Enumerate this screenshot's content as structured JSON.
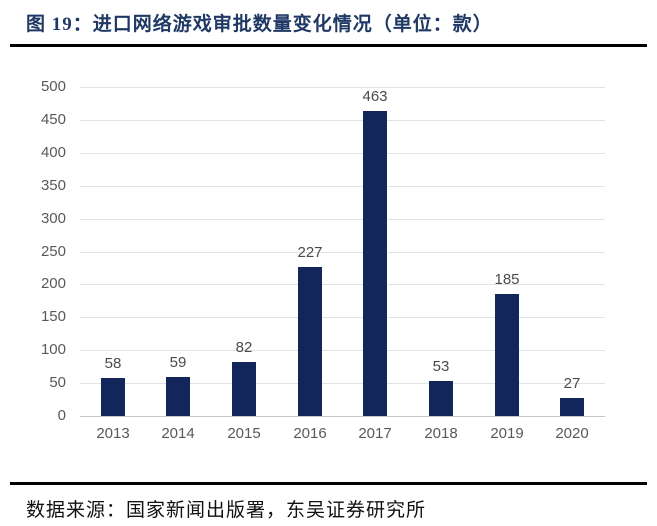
{
  "header": {
    "title": "图 19：进口网络游戏审批数量变化情况（单位：款）"
  },
  "chart_data": {
    "type": "bar",
    "title": "进口网络游戏审批数量变化情况",
    "unit": "款",
    "categories": [
      "2013",
      "2014",
      "2015",
      "2016",
      "2017",
      "2018",
      "2019",
      "2020"
    ],
    "values": [
      58,
      59,
      82,
      227,
      463,
      53,
      185,
      27
    ],
    "xlabel": "",
    "ylabel": "",
    "ylim": [
      0,
      500
    ],
    "ytick_step": 50,
    "grid": "horizontal",
    "legend_position": "none",
    "bar_color": "#13265C",
    "value_label_color": "#4a4a4a",
    "tick_color": "#595959"
  },
  "footer": {
    "source": "数据来源：国家新闻出版署，东吴证券研究所"
  },
  "colors": {
    "title_text": "#1F3864",
    "rule": "#000000",
    "background": "#FFFFFF",
    "gridline": "#e2e2e2"
  }
}
